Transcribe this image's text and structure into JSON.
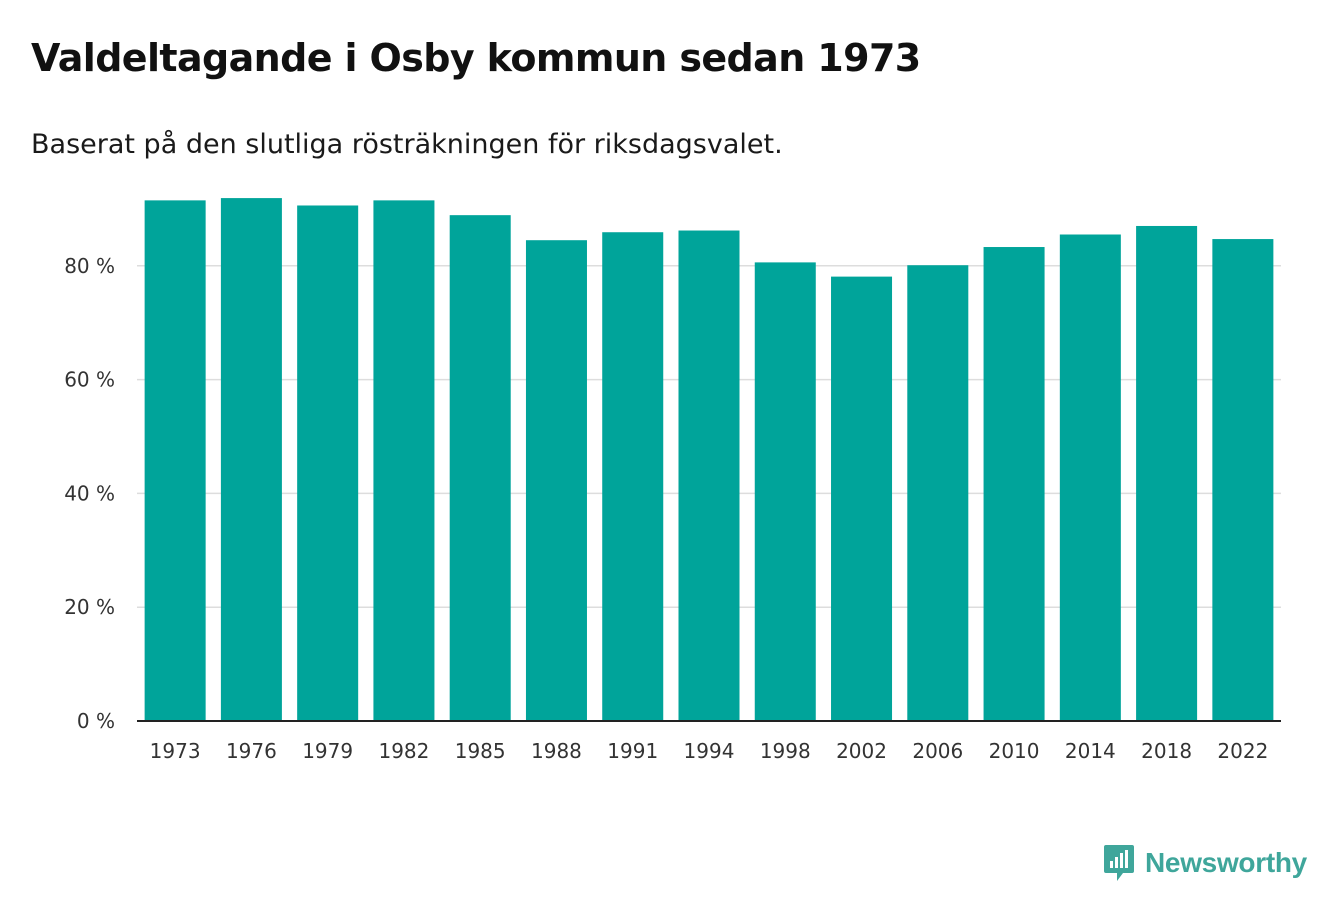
{
  "header": {
    "title": "Valdeltagande i Osby kommun sedan 1973",
    "subtitle": "Baserat på den slutliga rösträkningen för riksdagsvalet."
  },
  "brand": {
    "name": "Newsworthy",
    "icon": "newsworthy-logo-icon",
    "color": "#3fa69b"
  },
  "colors": {
    "bar": "#00a49a",
    "grid": "#dddddd",
    "axis": "#222222",
    "tick_text": "#333333"
  },
  "chart_data": {
    "type": "bar",
    "title": "Valdeltagande i Osby kommun sedan 1973",
    "subtitle": "Baserat på den slutliga rösträkningen för riksdagsvalet.",
    "xlabel": "",
    "ylabel": "",
    "categories": [
      "1973",
      "1976",
      "1979",
      "1982",
      "1985",
      "1988",
      "1991",
      "1994",
      "1998",
      "2002",
      "2006",
      "2010",
      "2014",
      "2018",
      "2022"
    ],
    "values": [
      91.5,
      91.9,
      90.6,
      91.5,
      88.9,
      84.5,
      85.9,
      86.2,
      80.6,
      78.1,
      80.1,
      83.3,
      85.5,
      87.0,
      84.7
    ],
    "ylim": [
      0,
      92
    ],
    "yticks": [
      0,
      20,
      40,
      60,
      80
    ],
    "ytick_labels": [
      "0 %",
      "20 %",
      "40 %",
      "60 %",
      "80 %"
    ],
    "grid": true,
    "legend": "none"
  }
}
